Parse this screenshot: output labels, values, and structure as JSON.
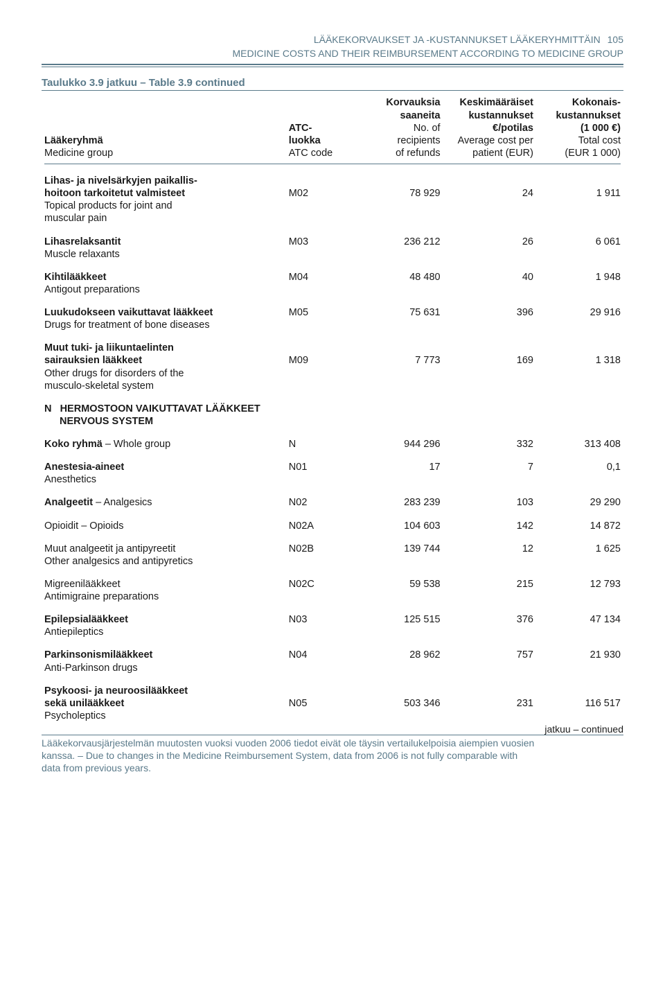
{
  "header": {
    "line1": "LÄÄKEKORVAUKSET JA -KUSTANNUKSET LÄÄKERYHMITTÄIN",
    "line2": "MEDICINE COSTS AND THEIR REIMBURSEMENT ACCORDING TO MEDICINE GROUP",
    "page_num": "105"
  },
  "table_title": "Taulukko 3.9 jatkuu – Table 3.9 continued",
  "columns": {
    "c1l1": "Lääkeryhmä",
    "c1l2": "Medicine group",
    "c2l1": "ATC-",
    "c2l2": "luokka",
    "c2l3": "ATC code",
    "c3l1": "Korvauksia",
    "c3l2": "saaneita",
    "c3l3": "No. of",
    "c3l4": "recipients",
    "c3l5": "of refunds",
    "c4l1": "Keskimääräiset",
    "c4l2": "kustannukset",
    "c4l3": "€/potilas",
    "c4l4": "Average cost per",
    "c4l5": "patient (EUR)",
    "c5l1": "Kokonais-",
    "c5l2": "kustannukset",
    "c5l3": "(1 000 €)",
    "c5l4": "Total cost",
    "c5l5": "(EUR 1 000)"
  },
  "rows": {
    "r1": {
      "b1": "Lihas- ja nivelsärkyjen paikallis-",
      "b2": "hoitoon tarkoitetut valmisteet",
      "n1": "Topical products for joint and",
      "n2": "muscular pain",
      "atc": "M02",
      "rec": "78 929",
      "avg": "24",
      "tot": "1 911"
    },
    "r2": {
      "b1": "Lihasrelaksantit",
      "n1": "Muscle relaxants",
      "atc": "M03",
      "rec": "236 212",
      "avg": "26",
      "tot": "6 061"
    },
    "r3": {
      "b1": "Kihtilääkkeet",
      "n1": "Antigout preparations",
      "atc": "M04",
      "rec": "48 480",
      "avg": "40",
      "tot": "1 948"
    },
    "r4": {
      "b1": "Luukudokseen vaikuttavat lääkkeet",
      "n1": "Drugs for treatment of bone diseases",
      "atc": "M05",
      "rec": "75 631",
      "avg": "396",
      "tot": "29 916"
    },
    "r5": {
      "b1": "Muut tuki- ja liikuntaelinten",
      "b2": "sairauksien lääkkeet",
      "n1": "Other drugs for disorders of the",
      "n2": "musculo-skeletal system",
      "atc": "M09",
      "rec": "7 773",
      "avg": "169",
      "tot": "1 318"
    },
    "sectionN": {
      "letter": "N",
      "b1": "HERMOSTOON VAIKUTTAVAT LÄÄKKEET",
      "b2": "NERVOUS SYSTEM"
    },
    "r6": {
      "b1": "Koko ryhmä",
      "n_inline": " – Whole group",
      "atc": "N",
      "rec": "944 296",
      "avg": "332",
      "tot": "313 408"
    },
    "r7": {
      "b1": "Anestesia-aineet",
      "n1": "Anesthetics",
      "atc": "N01",
      "rec": "17",
      "avg": "7",
      "tot": "0,1"
    },
    "r8": {
      "b1": "Analgeetit",
      "n_inline": " – Analgesics",
      "atc": "N02",
      "rec": "283 239",
      "avg": "103",
      "tot": "29 290"
    },
    "r9": {
      "n1": "Opioidit – Opioids",
      "atc": "N02A",
      "rec": "104 603",
      "avg": "142",
      "tot": "14 872"
    },
    "r10": {
      "n1": "Muut analgeetit ja antipyreetit",
      "n2": "Other analgesics and antipyretics",
      "atc": "N02B",
      "rec": "139 744",
      "avg": "12",
      "tot": "1 625"
    },
    "r11": {
      "n1": "Migreenilääkkeet",
      "n2": "Antimigraine preparations",
      "atc": "N02C",
      "rec": "59 538",
      "avg": "215",
      "tot": "12 793"
    },
    "r12": {
      "b1": "Epilepsialääkkeet",
      "n1": "Antiepileptics",
      "atc": "N03",
      "rec": "125 515",
      "avg": "376",
      "tot": "47 134"
    },
    "r13": {
      "b1": "Parkinsonismilääkkeet",
      "n1": "Anti-Parkinson drugs",
      "atc": "N04",
      "rec": "28 962",
      "avg": "757",
      "tot": "21 930"
    },
    "r14": {
      "b1": "Psykoosi- ja neuroosilääkkeet",
      "b2": "sekä unilääkkeet",
      "n1": "Psycholeptics",
      "atc": "N05",
      "rec": "503 346",
      "avg": "231",
      "tot": "116 517"
    }
  },
  "continued": "jatkuu – continued",
  "footnote": {
    "l1": "Lääkekorvausjärjestelmän muutosten vuoksi vuoden 2006 tiedot eivät ole täysin vertailukelpoisia aiempien vuosien",
    "l2": "kanssa. – Due to changes in the Medicine Reimbursement System, data from 2006 is not fully comparable with",
    "l3": "data from previous years."
  }
}
